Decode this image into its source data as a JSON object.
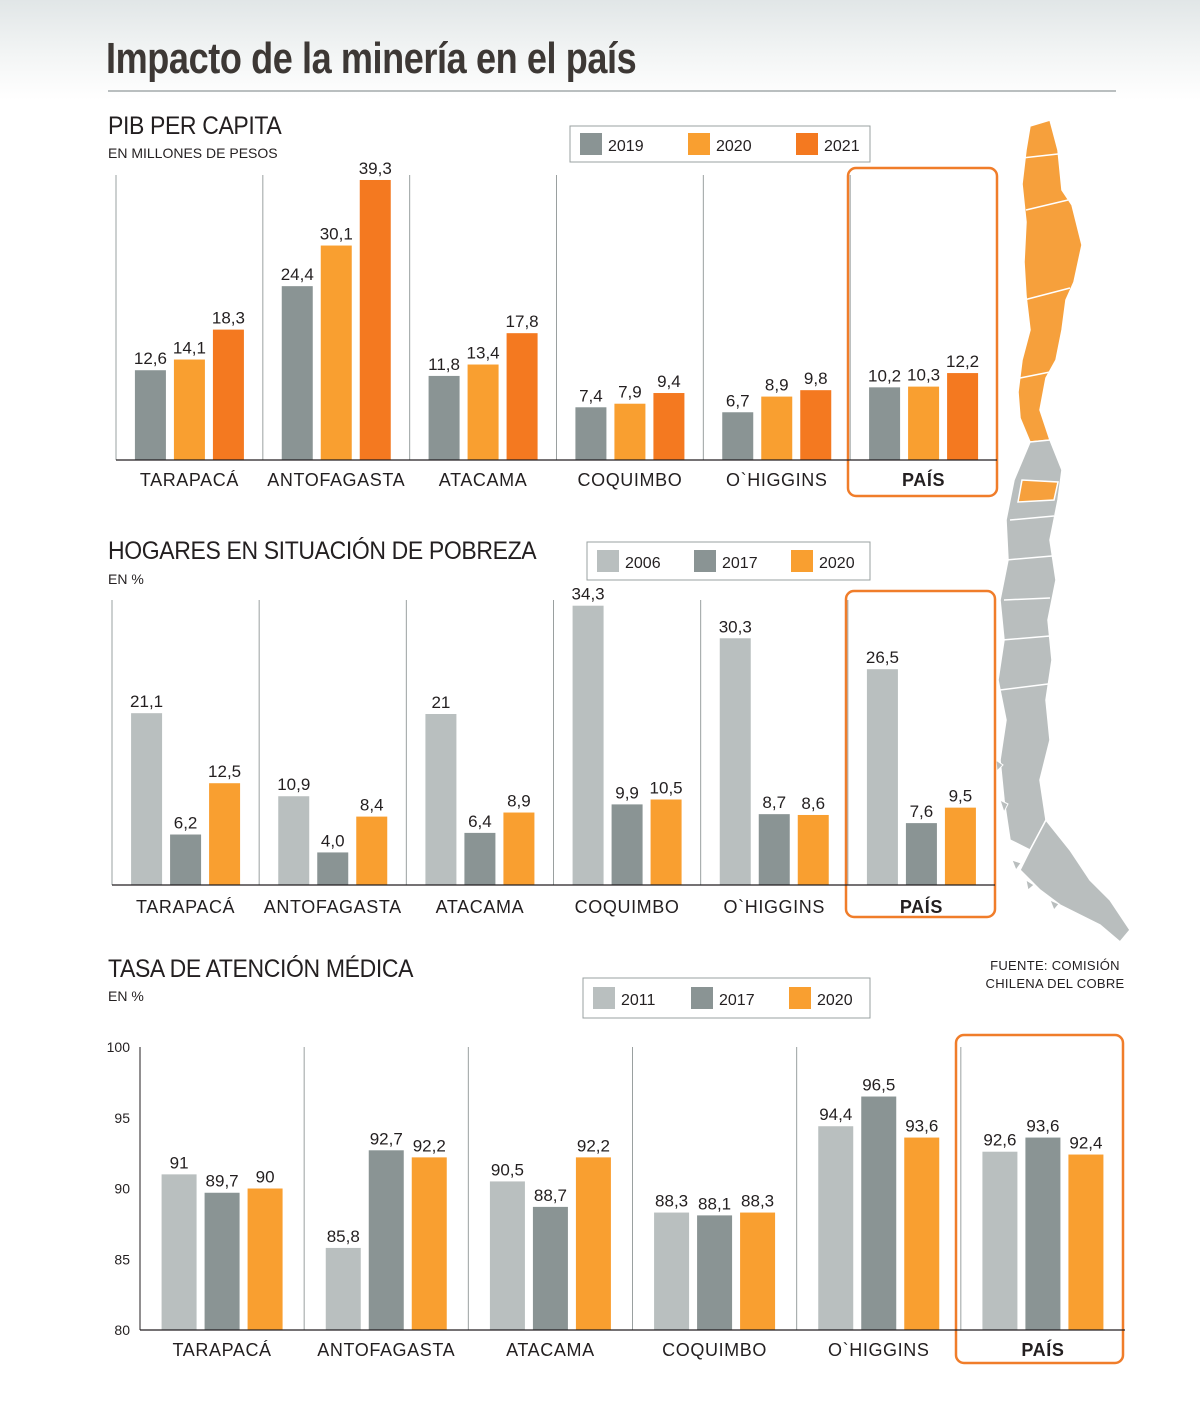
{
  "title": "Impacto de la minería en el país",
  "source_line1": "FUENTE: COMISIÓN",
  "source_line2": "CHILENA DEL COBRE",
  "colors": {
    "dark_gray": "#8a9494",
    "light_gray": "#b9bfbf",
    "light_orange": "#f99f30",
    "dark_orange": "#f47920",
    "highlight_box": "#f07d2a",
    "map_orange": "#f6a03c",
    "map_gray": "#b9bebe"
  },
  "map_icon": "chile-map-icon",
  "chart_data": [
    {
      "type": "bar",
      "title": "PIB PER CAPITA",
      "subtitle": "EN MILLONES DE PESOS",
      "categories": [
        "TARAPACÁ",
        "ANTOFAGASTA",
        "ATACAMA",
        "COQUIMBO",
        "O`HIGGINS",
        "PAÍS"
      ],
      "highlight_category": "PAÍS",
      "ylim": [
        0,
        40
      ],
      "series": [
        {
          "name": "2019",
          "color": "#8a9494",
          "values": [
            12.6,
            24.4,
            11.8,
            7.4,
            6.7,
            10.2
          ],
          "labels": [
            "12,6",
            "24,4",
            "11,8",
            "7,4",
            "6,7",
            "10,2"
          ]
        },
        {
          "name": "2020",
          "color": "#f99f30",
          "values": [
            14.1,
            30.1,
            13.4,
            7.9,
            8.9,
            10.3
          ],
          "labels": [
            "14,1",
            "30,1",
            "13,4",
            "7,9",
            "8,9",
            "10,3"
          ]
        },
        {
          "name": "2021",
          "color": "#f47920",
          "values": [
            18.3,
            39.3,
            17.8,
            9.4,
            9.8,
            12.2
          ],
          "labels": [
            "18,3",
            "39,3",
            "17,8",
            "9,4",
            "9,8",
            "12,2"
          ]
        }
      ]
    },
    {
      "type": "bar",
      "title": "HOGARES EN SITUACIÓN DE POBREZA",
      "subtitle": "EN %",
      "categories": [
        "TARAPACÁ",
        "ANTOFAGASTA",
        "ATACAMA",
        "COQUIMBO",
        "O`HIGGINS",
        "PAÍS"
      ],
      "highlight_category": "PAÍS",
      "ylim": [
        0,
        35
      ],
      "series": [
        {
          "name": "2006",
          "color": "#b9bfbf",
          "values": [
            21.1,
            10.9,
            21,
            34.3,
            30.3,
            26.5
          ],
          "labels": [
            "21,1",
            "10,9",
            "21",
            "34,3",
            "30,3",
            "26,5"
          ]
        },
        {
          "name": "2017",
          "color": "#8a9494",
          "values": [
            6.2,
            4.0,
            6.4,
            9.9,
            8.7,
            7.6
          ],
          "labels": [
            "6,2",
            "4,0",
            "6,4",
            "9,9",
            "8,7",
            "7,6"
          ]
        },
        {
          "name": "2020",
          "color": "#f99f30",
          "values": [
            12.5,
            8.4,
            8.9,
            10.5,
            8.6,
            9.5
          ],
          "labels": [
            "12,5",
            "8,4",
            "8,9",
            "10,5",
            "8,6",
            "9,5"
          ]
        }
      ]
    },
    {
      "type": "bar",
      "title": "TASA DE ATENCIÓN MÉDICA",
      "subtitle": "EN %",
      "categories": [
        "TARAPACÁ",
        "ANTOFAGASTA",
        "ATACAMA",
        "COQUIMBO",
        "O`HIGGINS",
        "PAÍS"
      ],
      "highlight_category": "PAÍS",
      "ylim": [
        80,
        100
      ],
      "yticks": [
        80,
        85,
        90,
        95,
        100
      ],
      "ytick_labels": [
        "80",
        "85",
        "90",
        "95",
        "100"
      ],
      "series": [
        {
          "name": "2011",
          "color": "#b9bfbf",
          "values": [
            91,
            85.8,
            90.5,
            88.3,
            94.4,
            92.6
          ],
          "labels": [
            "91",
            "85,8",
            "90,5",
            "88,3",
            "94,4",
            "92,6"
          ]
        },
        {
          "name": "2017",
          "color": "#8a9494",
          "values": [
            89.7,
            92.7,
            88.7,
            88.1,
            96.5,
            93.6
          ],
          "labels": [
            "89,7",
            "92,7",
            "88,7",
            "88,1",
            "96,5",
            "93,6"
          ]
        },
        {
          "name": "2020",
          "color": "#f99f30",
          "values": [
            90,
            92.2,
            92.2,
            88.3,
            93.6,
            92.4
          ],
          "labels": [
            "90",
            "92,2",
            "92,2",
            "88,3",
            "93,6",
            "92,4"
          ]
        }
      ]
    }
  ]
}
